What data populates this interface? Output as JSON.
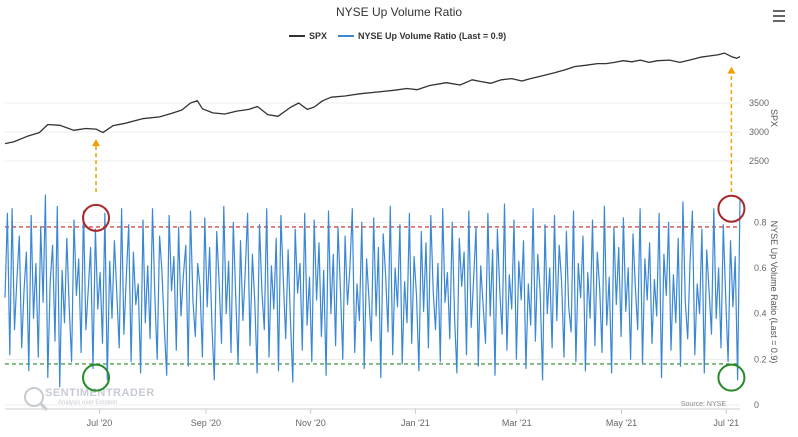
{
  "chart_data": {
    "type": "line",
    "title": "NYSE Up Volume Ratio",
    "source": "Source: NYSE",
    "watermark": {
      "name": "SENTIMENTRADER",
      "tagline": "Analysis over Emotion"
    },
    "menu_icon": "hamburger-menu-icon",
    "x_ticks": [
      "Jul '20",
      "Sep '20",
      "Nov '20",
      "Jan '21",
      "Mar '21",
      "May '21",
      "Jul '21"
    ],
    "x_tick_days": [
      20,
      82,
      143,
      204,
      263,
      324,
      385
    ],
    "x_range_days": [
      -35,
      393
    ],
    "series": [
      {
        "name": "SPX",
        "axis": "upper",
        "color": "#333333",
        "ylabel": "SPX",
        "ylim": [
          2000,
          4500
        ],
        "y_ticks": [
          2500,
          3000,
          3500
        ],
        "points": [
          [
            -35,
            2800
          ],
          [
            -30,
            2830
          ],
          [
            -22,
            2925
          ],
          [
            -15,
            2990
          ],
          [
            -10,
            3130
          ],
          [
            -3,
            3115
          ],
          [
            5,
            3030
          ],
          [
            12,
            3060
          ],
          [
            18,
            3050
          ],
          [
            22,
            2990
          ],
          [
            28,
            3110
          ],
          [
            35,
            3150
          ],
          [
            45,
            3230
          ],
          [
            55,
            3260
          ],
          [
            62,
            3320
          ],
          [
            68,
            3380
          ],
          [
            73,
            3500
          ],
          [
            77,
            3540
          ],
          [
            80,
            3400
          ],
          [
            86,
            3330
          ],
          [
            93,
            3310
          ],
          [
            100,
            3360
          ],
          [
            107,
            3390
          ],
          [
            112,
            3440
          ],
          [
            118,
            3300
          ],
          [
            124,
            3270
          ],
          [
            131,
            3420
          ],
          [
            136,
            3500
          ],
          [
            141,
            3390
          ],
          [
            145,
            3430
          ],
          [
            150,
            3540
          ],
          [
            155,
            3600
          ],
          [
            163,
            3620
          ],
          [
            172,
            3660
          ],
          [
            182,
            3690
          ],
          [
            192,
            3720
          ],
          [
            199,
            3750
          ],
          [
            205,
            3730
          ],
          [
            212,
            3800
          ],
          [
            222,
            3850
          ],
          [
            230,
            3810
          ],
          [
            237,
            3900
          ],
          [
            242,
            3870
          ],
          [
            248,
            3840
          ],
          [
            254,
            3900
          ],
          [
            260,
            3920
          ],
          [
            266,
            3880
          ],
          [
            271,
            3920
          ],
          [
            278,
            3970
          ],
          [
            285,
            4020
          ],
          [
            291,
            4070
          ],
          [
            297,
            4130
          ],
          [
            303,
            4150
          ],
          [
            310,
            4180
          ],
          [
            315,
            4180
          ],
          [
            320,
            4200
          ],
          [
            325,
            4230
          ],
          [
            330,
            4210
          ],
          [
            335,
            4240
          ],
          [
            340,
            4200
          ],
          [
            345,
            4230
          ],
          [
            352,
            4240
          ],
          [
            358,
            4200
          ],
          [
            365,
            4250
          ],
          [
            370,
            4290
          ],
          [
            375,
            4310
          ],
          [
            380,
            4330
          ],
          [
            384,
            4360
          ],
          [
            388,
            4300
          ],
          [
            391,
            4270
          ],
          [
            393,
            4300
          ]
        ]
      },
      {
        "name": "NYSE Up Volume Ratio (Last = 0.9)",
        "axis": "lower",
        "color": "#3a87d4",
        "ylabel": "NYSE Up Volume Ratio (Last = 0.9)",
        "ylim": [
          0,
          0.92
        ],
        "y_ticks": [
          0,
          0.2,
          0.4,
          0.6,
          0.8
        ],
        "values": [
          0.47,
          0.84,
          0.22,
          0.86,
          0.33,
          0.55,
          0.74,
          0.25,
          0.5,
          0.67,
          0.15,
          0.83,
          0.38,
          0.62,
          0.21,
          0.78,
          0.45,
          0.92,
          0.12,
          0.54,
          0.7,
          0.28,
          0.87,
          0.08,
          0.59,
          0.36,
          0.73,
          0.43,
          0.19,
          0.81,
          0.48,
          0.64,
          0.23,
          0.85,
          0.33,
          0.51,
          0.69,
          0.16,
          0.77,
          0.42,
          0.58,
          0.27,
          0.84,
          0.11,
          0.63,
          0.38,
          0.72,
          0.49,
          0.25,
          0.86,
          0.31,
          0.56,
          0.79,
          0.19,
          0.67,
          0.44,
          0.53,
          0.14,
          0.81,
          0.36,
          0.61,
          0.29,
          0.86,
          0.47,
          0.2,
          0.74,
          0.58,
          0.33,
          0.13,
          0.83,
          0.5,
          0.65,
          0.24,
          0.78,
          0.39,
          0.57,
          0.7,
          0.17,
          0.85,
          0.46,
          0.3,
          0.62,
          0.52,
          0.21,
          0.82,
          0.43,
          0.69,
          0.35,
          0.11,
          0.76,
          0.54,
          0.27,
          0.87,
          0.4,
          0.63,
          0.23,
          0.8,
          0.48,
          0.18,
          0.72,
          0.37,
          0.58,
          0.84,
          0.26,
          0.66,
          0.45,
          0.14,
          0.79,
          0.5,
          0.33,
          0.86,
          0.21,
          0.61,
          0.42,
          0.73,
          0.15,
          0.83,
          0.55,
          0.29,
          0.68,
          0.38,
          0.1,
          0.77,
          0.49,
          0.62,
          0.24,
          0.84,
          0.35,
          0.56,
          0.19,
          0.81,
          0.46,
          0.71,
          0.3,
          0.59,
          0.13,
          0.85,
          0.4,
          0.66,
          0.26,
          0.78,
          0.51,
          0.2,
          0.74,
          0.44,
          0.6,
          0.86,
          0.23,
          0.53,
          0.37,
          0.8,
          0.16,
          0.64,
          0.47,
          0.28,
          0.82,
          0.39,
          0.69,
          0.12,
          0.75,
          0.57,
          0.32,
          0.87,
          0.22,
          0.6,
          0.43,
          0.79,
          0.18,
          0.54,
          0.36,
          0.84,
          0.27,
          0.65,
          0.48,
          0.15,
          0.76,
          0.41,
          0.71,
          0.25,
          0.83,
          0.5,
          0.33,
          0.62,
          0.19,
          0.86,
          0.45,
          0.58,
          0.29,
          0.8,
          0.38,
          0.14,
          0.73,
          0.52,
          0.67,
          0.22,
          0.85,
          0.34,
          0.55,
          0.78,
          0.17,
          0.61,
          0.44,
          0.27,
          0.84,
          0.39,
          0.68,
          0.13,
          0.77,
          0.5,
          0.31,
          0.88,
          0.24,
          0.57,
          0.42,
          0.81,
          0.2,
          0.63,
          0.46,
          0.72,
          0.16,
          0.53,
          0.35,
          0.86,
          0.28,
          0.66,
          0.49,
          0.11,
          0.79,
          0.4,
          0.6,
          0.25,
          0.83,
          0.37,
          0.7,
          0.54,
          0.21,
          0.76,
          0.43,
          0.32,
          0.85,
          0.19,
          0.62,
          0.47,
          0.74,
          0.15,
          0.58,
          0.38,
          0.81,
          0.26,
          0.67,
          0.51,
          0.23,
          0.87,
          0.35,
          0.56,
          0.14,
          0.78,
          0.44,
          0.69,
          0.3,
          0.82,
          0.41,
          0.6,
          0.2,
          0.75,
          0.52,
          0.33,
          0.86,
          0.18,
          0.64,
          0.46,
          0.71,
          0.27,
          0.55,
          0.39,
          0.84,
          0.12,
          0.66,
          0.48,
          0.8,
          0.24,
          0.57,
          0.36,
          0.73,
          0.17,
          0.89,
          0.45,
          0.29,
          0.62,
          0.85,
          0.22,
          0.53,
          0.4,
          0.77,
          0.14,
          0.68,
          0.5,
          0.31,
          0.86,
          0.38,
          0.6,
          0.25,
          0.79,
          0.47,
          0.19,
          0.72,
          0.43,
          0.65,
          0.11,
          0.9
        ]
      }
    ],
    "reference_lines": [
      {
        "value": 0.78,
        "color": "#cc2222"
      },
      {
        "value": 0.18,
        "color": "#2a8a2a"
      }
    ],
    "annotations": [
      {
        "type": "circle",
        "day": 18,
        "value": 0.82,
        "color": "#a52a2a"
      },
      {
        "type": "circle",
        "day": 18,
        "value": 0.12,
        "color": "#2a8a2a"
      },
      {
        "type": "circle",
        "day": 388,
        "value": 0.86,
        "color": "#a52a2a"
      },
      {
        "type": "circle",
        "day": 388,
        "value": 0.12,
        "color": "#2a8a2a"
      },
      {
        "type": "arrow",
        "day": 18,
        "color": "#f0a000"
      },
      {
        "type": "arrow",
        "day": 388,
        "color": "#f0a000"
      }
    ],
    "legend": {
      "position": "top-center"
    }
  }
}
